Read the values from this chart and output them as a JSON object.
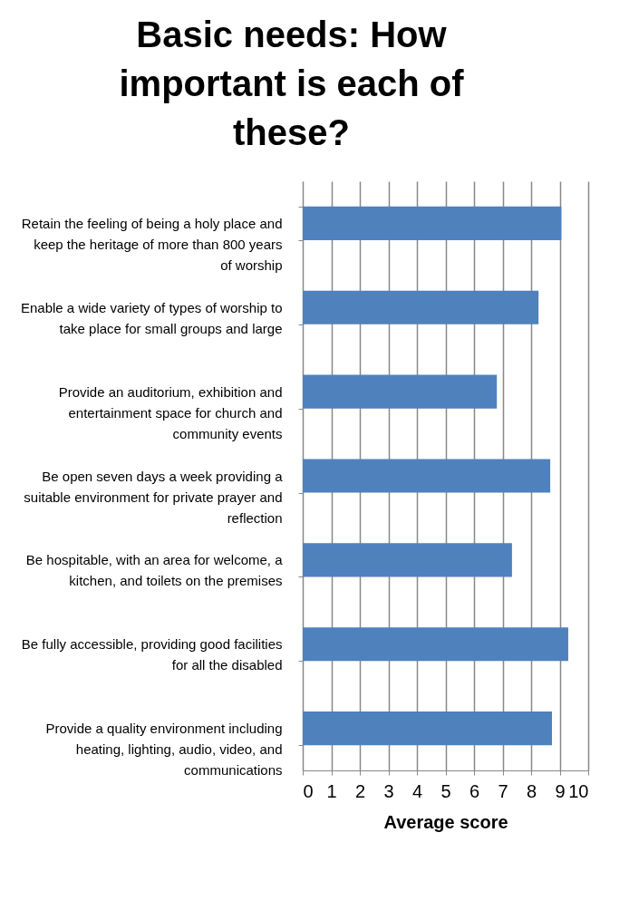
{
  "chart_data": {
    "type": "bar",
    "orientation": "horizontal",
    "title": "Basic needs:  How important is each of these?",
    "xlabel": "Average score",
    "categories": [
      "Retain the feeling of being a holy place and keep the heritage of more than 800 years of worship",
      "Enable a wide variety of types of worship to take place for small groups and large",
      "Provide an auditorium, exhibition and entertainment space for church and community events",
      "Be open seven days a week providing a suitable environment for private prayer and reflection",
      "Be hospitable, with an area for welcome, a kitchen, and toilets on the premises",
      "Be fully accessible, providing good facilities for all the disabled",
      "Provide a quality environment including  heating, lighting, audio, video, and communications"
    ],
    "values": [
      9.06,
      8.26,
      6.8,
      8.67,
      7.33,
      9.3,
      8.73
    ],
    "color": "#4f81bd",
    "xlim": [
      0,
      10
    ],
    "xticks": [
      0,
      1,
      2,
      3,
      4,
      5,
      6,
      7,
      8,
      9,
      10
    ],
    "grid": "x"
  }
}
